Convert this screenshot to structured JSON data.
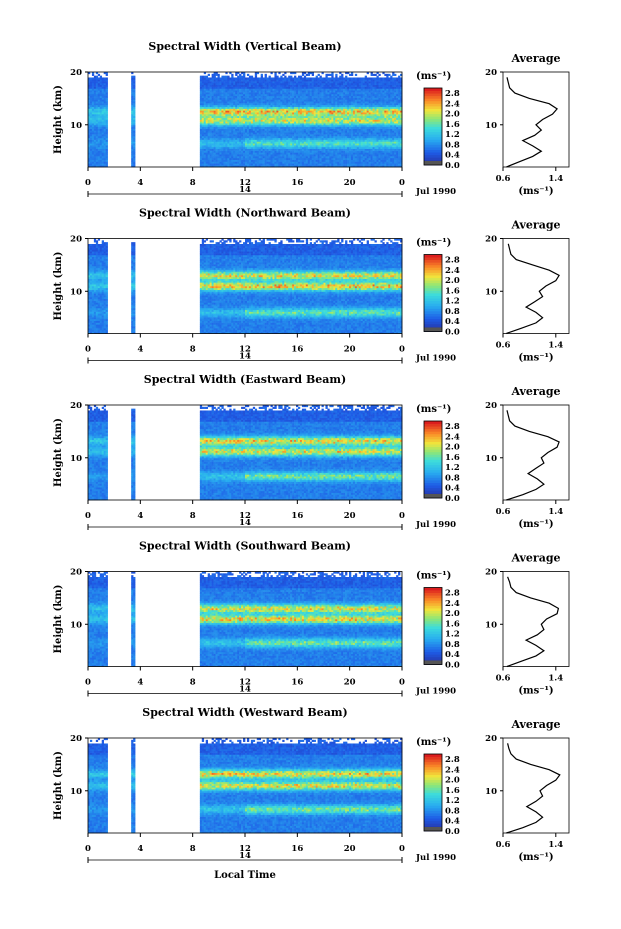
{
  "chart_data": [
    {
      "type": "heatmap",
      "title": "Spectral Width (Vertical Beam)",
      "ylabel": "Height (km)",
      "ylim": [
        2,
        20
      ],
      "y_ticks": [
        "20",
        "10"
      ],
      "xlim": [
        0,
        24
      ],
      "x_ticks": [
        "0",
        "4",
        "8",
        "12",
        "16",
        "20",
        "0"
      ],
      "date_day": "14",
      "date_label": "Jul 1990",
      "colorbar": {
        "unit": "(ms⁻¹)",
        "ticks": [
          "2.8",
          "2.4",
          "2.0",
          "1.6",
          "1.2",
          "0.8",
          "0.4",
          "0.0"
        ],
        "range": [
          0.0,
          3.0
        ]
      },
      "gaps": [
        [
          1.5,
          3.3
        ],
        [
          3.6,
          8.5
        ]
      ],
      "features": [
        {
          "height_km": 12.5,
          "intensity": 2.5
        },
        {
          "height_km": 10.8,
          "intensity": 2.2
        },
        {
          "height_km": 6.5,
          "intensity": 1.6
        }
      ],
      "profile": {
        "title": "Average",
        "ylim": [
          2,
          20
        ],
        "y_ticks": [
          "20",
          "10"
        ],
        "x_ticks": [
          "0.6",
          "1.4"
        ],
        "xlim": [
          0.6,
          1.6
        ],
        "xlabel": "(ms⁻¹)",
        "heights": [
          2,
          3,
          4,
          5,
          6,
          7,
          8,
          9,
          10,
          11,
          12,
          13,
          14,
          15,
          16,
          17,
          18,
          19
        ],
        "values": [
          0.65,
          0.85,
          1.05,
          1.18,
          1.05,
          0.9,
          1.08,
          1.18,
          1.1,
          1.2,
          1.35,
          1.42,
          1.3,
          1.0,
          0.78,
          0.7,
          0.68,
          0.66
        ]
      }
    },
    {
      "type": "heatmap",
      "title": "Spectral Width (Northward Beam)",
      "ylabel": "Height (km)",
      "ylim": [
        2,
        20
      ],
      "y_ticks": [
        "20",
        "10"
      ],
      "xlim": [
        0,
        24
      ],
      "x_ticks": [
        "0",
        "4",
        "8",
        "12",
        "16",
        "20",
        "0"
      ],
      "date_day": "14",
      "date_label": "Jul 1990",
      "colorbar": {
        "unit": "(ms⁻¹)",
        "ticks": [
          "2.8",
          "2.4",
          "2.0",
          "1.6",
          "1.2",
          "0.8",
          "0.4",
          "0.0"
        ],
        "range": [
          0.0,
          3.0
        ]
      },
      "gaps": [
        [
          1.5,
          3.3
        ],
        [
          3.6,
          8.5
        ]
      ],
      "features": [
        {
          "height_km": 13.0,
          "intensity": 2.3
        },
        {
          "height_km": 11.0,
          "intensity": 2.5
        },
        {
          "height_km": 6.0,
          "intensity": 1.7
        }
      ],
      "profile": {
        "title": "Average",
        "ylim": [
          2,
          20
        ],
        "y_ticks": [
          "20",
          "10"
        ],
        "x_ticks": [
          "0.6",
          "1.4"
        ],
        "xlim": [
          0.6,
          1.6
        ],
        "xlabel": "(ms⁻¹)",
        "heights": [
          2,
          3,
          4,
          5,
          6,
          7,
          8,
          9,
          10,
          11,
          12,
          13,
          14,
          15,
          16,
          17,
          18,
          19
        ],
        "values": [
          0.65,
          0.88,
          1.1,
          1.2,
          1.1,
          0.95,
          1.08,
          1.2,
          1.15,
          1.25,
          1.4,
          1.45,
          1.3,
          1.05,
          0.8,
          0.72,
          0.7,
          0.68
        ]
      }
    },
    {
      "type": "heatmap",
      "title": "Spectral Width (Eastward Beam)",
      "ylabel": "Height (km)",
      "ylim": [
        2,
        20
      ],
      "y_ticks": [
        "20",
        "10"
      ],
      "xlim": [
        0,
        24
      ],
      "x_ticks": [
        "0",
        "4",
        "8",
        "12",
        "16",
        "20",
        "0"
      ],
      "date_day": "14",
      "date_label": "Jul 1990",
      "colorbar": {
        "unit": "(ms⁻¹)",
        "ticks": [
          "2.8",
          "2.4",
          "2.0",
          "1.6",
          "1.2",
          "0.8",
          "0.4",
          "0.0"
        ],
        "range": [
          0.0,
          3.0
        ]
      },
      "gaps": [
        [
          1.5,
          3.3
        ],
        [
          3.6,
          8.5
        ]
      ],
      "features": [
        {
          "height_km": 13.2,
          "intensity": 2.4
        },
        {
          "height_km": 11.2,
          "intensity": 2.3
        },
        {
          "height_km": 6.5,
          "intensity": 1.8
        }
      ],
      "profile": {
        "title": "Average",
        "ylim": [
          2,
          20
        ],
        "y_ticks": [
          "20",
          "10"
        ],
        "x_ticks": [
          "0.6",
          "1.4"
        ],
        "xlim": [
          0.6,
          1.6
        ],
        "xlabel": "(ms⁻¹)",
        "heights": [
          2,
          3,
          4,
          5,
          6,
          7,
          8,
          9,
          10,
          11,
          12,
          13,
          14,
          15,
          16,
          17,
          18,
          19
        ],
        "values": [
          0.65,
          0.9,
          1.1,
          1.22,
          1.12,
          0.98,
          1.1,
          1.22,
          1.18,
          1.28,
          1.42,
          1.45,
          1.28,
          1.0,
          0.78,
          0.7,
          0.68,
          0.66
        ]
      }
    },
    {
      "type": "heatmap",
      "title": "Spectral Width (Southward Beam)",
      "ylabel": "Height (km)",
      "ylim": [
        2,
        20
      ],
      "y_ticks": [
        "20",
        "10"
      ],
      "xlim": [
        0,
        24
      ],
      "x_ticks": [
        "0",
        "4",
        "8",
        "12",
        "16",
        "20",
        "0"
      ],
      "date_day": "14",
      "date_label": "Jul 1990",
      "colorbar": {
        "unit": "(ms⁻¹)",
        "ticks": [
          "2.8",
          "2.4",
          "2.0",
          "1.6",
          "1.2",
          "0.8",
          "0.4",
          "0.0"
        ],
        "range": [
          0.0,
          3.0
        ]
      },
      "gaps": [
        [
          1.5,
          3.3
        ],
        [
          3.6,
          8.5
        ]
      ],
      "features": [
        {
          "height_km": 13.0,
          "intensity": 2.3
        },
        {
          "height_km": 11.0,
          "intensity": 2.4
        },
        {
          "height_km": 6.5,
          "intensity": 1.8
        }
      ],
      "profile": {
        "title": "Average",
        "ylim": [
          2,
          20
        ],
        "y_ticks": [
          "20",
          "10"
        ],
        "x_ticks": [
          "0.6",
          "1.4"
        ],
        "xlim": [
          0.6,
          1.6
        ],
        "xlabel": "(ms⁻¹)",
        "heights": [
          2,
          3,
          4,
          5,
          6,
          7,
          8,
          9,
          10,
          11,
          12,
          13,
          14,
          15,
          16,
          17,
          18,
          19
        ],
        "values": [
          0.66,
          0.88,
          1.1,
          1.22,
          1.1,
          0.95,
          1.12,
          1.22,
          1.18,
          1.26,
          1.42,
          1.44,
          1.3,
          1.02,
          0.8,
          0.72,
          0.7,
          0.67
        ]
      }
    },
    {
      "type": "heatmap",
      "title": "Spectral Width (Westward Beam)",
      "ylabel": "Height (km)",
      "ylim": [
        2,
        20
      ],
      "y_ticks": [
        "20",
        "10"
      ],
      "xlim": [
        0,
        24
      ],
      "x_ticks": [
        "0",
        "4",
        "8",
        "12",
        "16",
        "20",
        "0"
      ],
      "date_day": "14",
      "date_label": "Jul 1990",
      "xlabel": "Local Time",
      "colorbar": {
        "unit": "(ms⁻¹)",
        "ticks": [
          "2.8",
          "2.4",
          "2.0",
          "1.6",
          "1.2",
          "0.8",
          "0.4",
          "0.0"
        ],
        "range": [
          0.0,
          3.0
        ]
      },
      "gaps": [
        [
          1.5,
          3.3
        ],
        [
          3.6,
          8.5
        ]
      ],
      "features": [
        {
          "height_km": 13.2,
          "intensity": 2.4
        },
        {
          "height_km": 11.0,
          "intensity": 2.3
        },
        {
          "height_km": 6.5,
          "intensity": 1.8
        }
      ],
      "profile": {
        "title": "Average",
        "ylim": [
          2,
          20
        ],
        "y_ticks": [
          "20",
          "10"
        ],
        "x_ticks": [
          "0.6",
          "1.4"
        ],
        "xlim": [
          0.6,
          1.6
        ],
        "xlabel": "(ms⁻¹)",
        "heights": [
          2,
          3,
          4,
          5,
          6,
          7,
          8,
          9,
          10,
          11,
          12,
          13,
          14,
          15,
          16,
          17,
          18,
          19
        ],
        "values": [
          0.65,
          0.9,
          1.1,
          1.2,
          1.1,
          0.96,
          1.1,
          1.2,
          1.16,
          1.26,
          1.4,
          1.46,
          1.3,
          1.02,
          0.8,
          0.72,
          0.69,
          0.67
        ]
      }
    }
  ]
}
